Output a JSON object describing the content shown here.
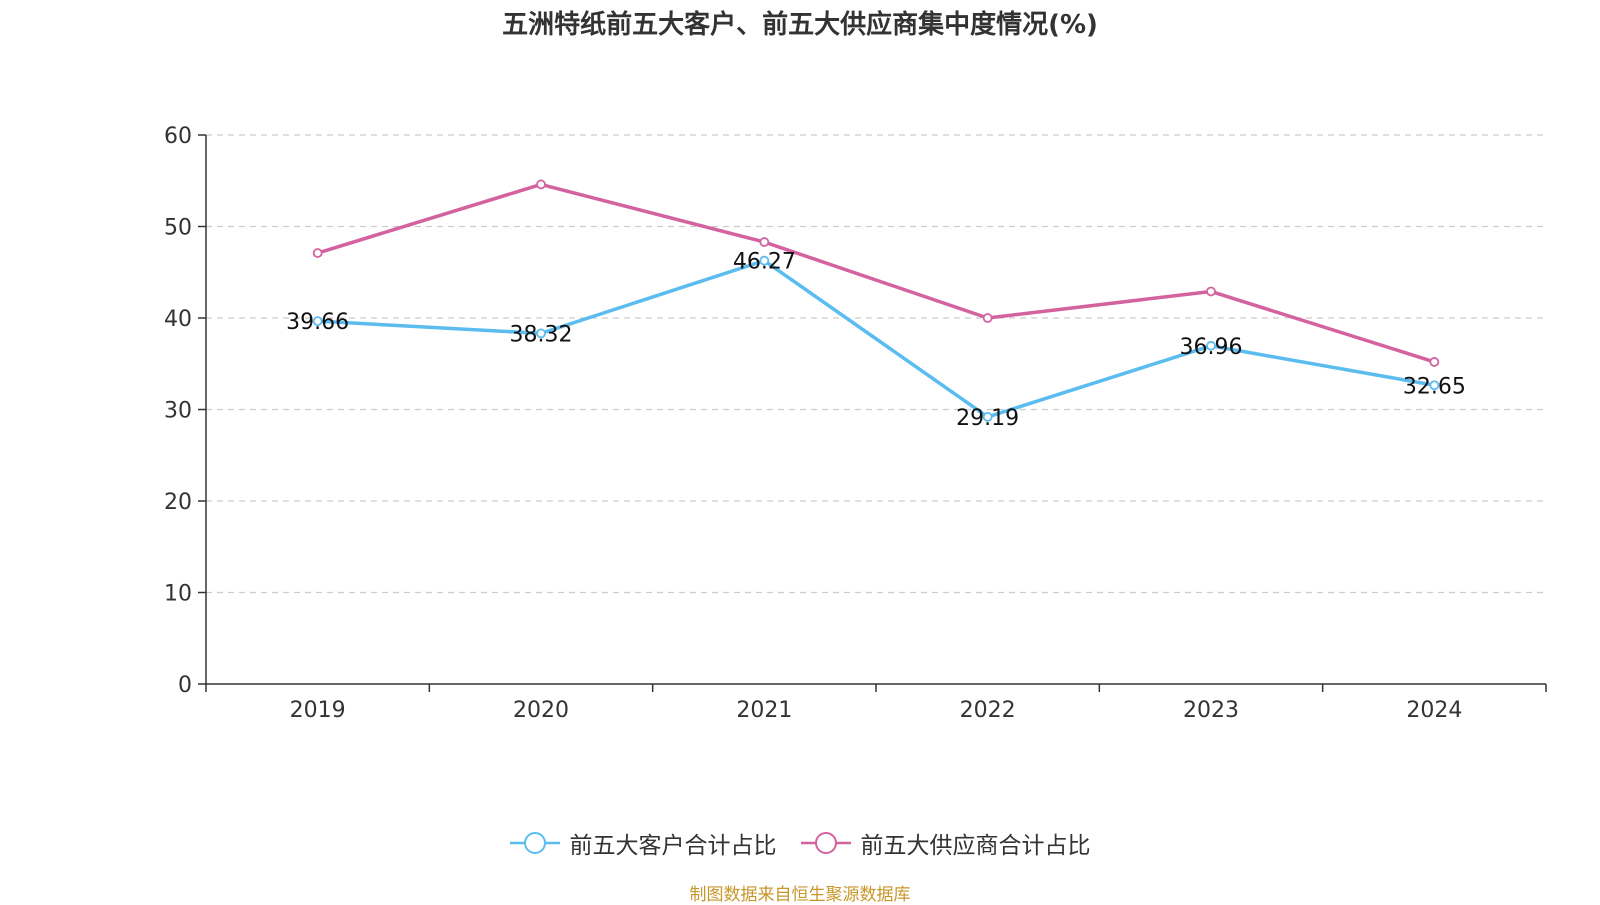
{
  "title": "五洲特纸前五大客户、前五大供应商集中度情况(%)",
  "source": "制图数据来自恒生聚源数据库",
  "colors": {
    "customers": "#5bbcf0",
    "suppliers": "#d3629e",
    "grid": "#cccccc",
    "axis": "#333333"
  },
  "chart_data": {
    "type": "line",
    "title": "五洲特纸前五大客户、前五大供应商集中度情况(%)",
    "categories": [
      "2019",
      "2020",
      "2021",
      "2022",
      "2023",
      "2024"
    ],
    "ylim": [
      0,
      60
    ],
    "yticks": [
      0,
      10,
      20,
      30,
      40,
      50,
      60
    ],
    "grid": true,
    "legend_position": "bottom-center",
    "series": [
      {
        "name": "前五大客户合计占比",
        "values": [
          39.66,
          38.32,
          46.27,
          29.19,
          36.96,
          32.65
        ],
        "labels_shown": true
      },
      {
        "name": "前五大供应商合计占比",
        "values": [
          47.1,
          54.6,
          48.3,
          40.0,
          42.9,
          35.2
        ],
        "labels_shown": false
      }
    ]
  }
}
